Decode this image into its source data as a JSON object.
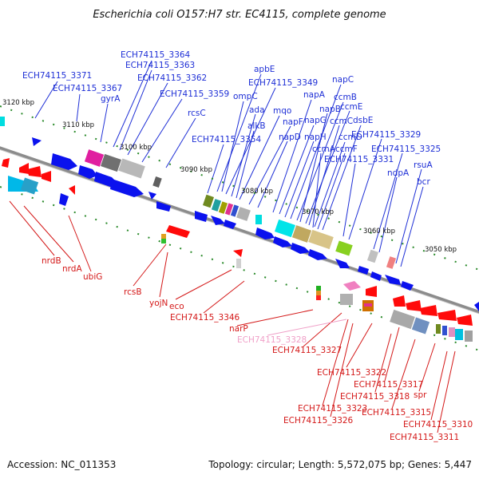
{
  "title": "Escherichia coli O157:H7 str. EC4115, complete genome",
  "footer": {
    "accession": "Accession: NC_011353",
    "summary": "Topology: circular; Length: 5,572,075 bp; Genes: 5,447"
  },
  "colors": {
    "forward_label": "#1e2fd6",
    "reverse_label": "#d41818",
    "pseudo_label": "#f0a0c8",
    "axis": "#808080",
    "tick_dot": "#2a8a2a"
  },
  "ticks": [
    "3120 kbp",
    "3110 kbp",
    "3100 kbp",
    "3090 kbp",
    "3080 kbp",
    "3070 kbp",
    "3060 kbp",
    "3050 kbp"
  ],
  "top_labels": [
    "ECH74115_3371",
    "ECH74115_3367",
    "ECH74115_3364",
    "ECH74115_3363",
    "ECH74115_3362",
    "ECH74115_3359",
    "gyrA",
    "rcsC",
    "ECH74115_3354",
    "apbE",
    "ECH74115_3349",
    "ompC",
    "ada",
    "alkB",
    "mqo",
    "napF",
    "napD",
    "napA",
    "napG",
    "napH",
    "napC",
    "ccmB",
    "napB",
    "ccmE",
    "ccmC",
    "ccmD",
    "dsbE",
    "ccmA",
    "ccmF",
    "ECH74115_3329",
    "ECH74115_3331",
    "ECH74115_3325",
    "ndpA",
    "rsuA",
    "bcr"
  ],
  "bottom_labels": [
    "nrdB",
    "nrdA",
    "ubiG",
    "rcsB",
    "yojN",
    "eco",
    "ECH74115_3346",
    "narP",
    "ECH74115_3328",
    "ECH74115_3327",
    "ECH74115_3322",
    "ECH74115_3317",
    "ECH74115_3318",
    "ECH74115_3323",
    "ECH74115_3315",
    "spr",
    "ECH74115_3326",
    "ECH74115_3310",
    "ECH74115_3311"
  ]
}
